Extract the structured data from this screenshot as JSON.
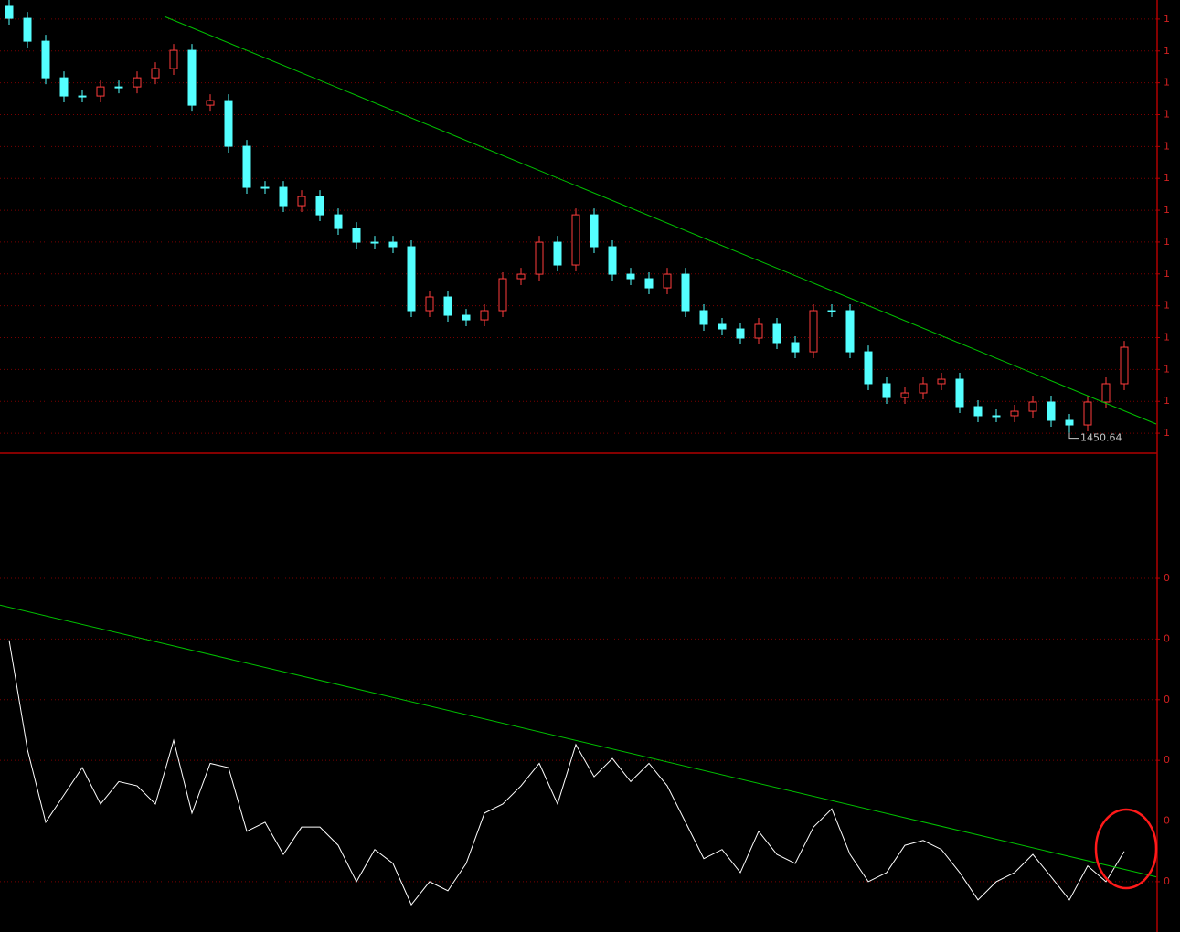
{
  "chart_data": [
    {
      "type": "candlestick",
      "x": [
        0,
        1,
        2,
        3,
        4,
        5,
        6,
        7,
        8,
        9,
        10,
        11,
        12,
        13,
        14,
        15,
        16,
        17,
        18,
        19,
        20,
        21,
        22,
        23,
        24,
        25,
        26,
        27,
        28,
        29,
        30,
        31,
        32,
        33,
        34,
        35,
        36,
        37,
        38,
        39,
        40,
        41,
        42,
        43,
        44,
        45,
        46,
        47,
        48,
        49,
        50,
        51,
        52,
        53,
        54,
        55,
        56,
        57,
        58,
        59,
        60,
        61
      ],
      "open": [
        2120,
        2101.2,
        2065.3,
        2007.9,
        1979.3,
        1979.3,
        1993.6,
        1993.6,
        2007.9,
        2022.3,
        2051.0,
        1964.9,
        1972.1,
        1900.4,
        1835.9,
        1835.9,
        1807.2,
        1821.5,
        1792.8,
        1771.3,
        1749.8,
        1749.8,
        1742.7,
        1642.3,
        1663.8,
        1635.1,
        1627.9,
        1642.3,
        1692.5,
        1699.6,
        1749.8,
        1714.0,
        1792.8,
        1742.7,
        1699.6,
        1692.5,
        1678.1,
        1699.6,
        1642.3,
        1620.8,
        1613.6,
        1599.3,
        1620.8,
        1592.1,
        1577.7,
        1642.3,
        1642.3,
        1577.7,
        1527.6,
        1506.0,
        1513.2,
        1527.6,
        1534.7,
        1491.7,
        1477.4,
        1477.4,
        1484.5,
        1498.9,
        1470.2,
        1463.0,
        1498.9,
        1527.6
      ],
      "high": [
        2130,
        2111.2,
        2075.3,
        2017.9,
        1989.3,
        2003.6,
        2003.6,
        2017.9,
        2032.3,
        2061.0,
        2061.0,
        1982.1,
        1982.1,
        1910.4,
        1845.9,
        1845.9,
        1831.5,
        1831.5,
        1802.8,
        1781.3,
        1759.8,
        1759.8,
        1752.7,
        1673.8,
        1673.8,
        1645.1,
        1652.3,
        1702.5,
        1709.6,
        1759.8,
        1759.8,
        1802.8,
        1802.8,
        1752.7,
        1709.6,
        1702.5,
        1709.6,
        1709.6,
        1652.3,
        1630.8,
        1623.6,
        1630.8,
        1630.8,
        1602.1,
        1652.3,
        1652.3,
        1652.3,
        1587.7,
        1537.6,
        1523.2,
        1537.6,
        1544.7,
        1544.7,
        1501.7,
        1487.4,
        1494.5,
        1508.9,
        1508.9,
        1480.2,
        1508.9,
        1537.6,
        1594.9
      ],
      "low": [
        2091.2,
        2055.3,
        1997.9,
        1969.3,
        1969.3,
        1969.3,
        1983.6,
        1983.6,
        1997.9,
        2012.3,
        1954.9,
        1954.9,
        1890.4,
        1825.9,
        1825.9,
        1797.2,
        1797.2,
        1782.8,
        1761.3,
        1739.8,
        1739.8,
        1732.7,
        1632.3,
        1632.3,
        1625.1,
        1617.9,
        1617.9,
        1632.3,
        1682.5,
        1689.6,
        1704.0,
        1704.0,
        1732.7,
        1689.6,
        1682.5,
        1668.1,
        1668.1,
        1632.3,
        1610.8,
        1603.6,
        1589.3,
        1589.3,
        1582.1,
        1567.7,
        1567.7,
        1632.3,
        1567.7,
        1517.6,
        1496.0,
        1496.0,
        1503.2,
        1517.6,
        1481.7,
        1467.4,
        1467.4,
        1467.4,
        1474.5,
        1460.2,
        1450.64,
        1453.0,
        1488.9,
        1517.6
      ],
      "close": [
        2101.2,
        2065.3,
        2007.9,
        1979.3,
        1979.3,
        1993.6,
        1993.6,
        2007.9,
        2022.3,
        2051.0,
        1964.9,
        1972.1,
        1900.4,
        1835.9,
        1835.9,
        1807.2,
        1821.5,
        1792.8,
        1771.3,
        1749.8,
        1749.8,
        1742.7,
        1642.3,
        1663.8,
        1635.1,
        1627.9,
        1642.3,
        1692.5,
        1699.6,
        1749.8,
        1714.0,
        1792.8,
        1742.7,
        1699.6,
        1692.5,
        1678.1,
        1699.6,
        1642.3,
        1620.8,
        1613.6,
        1599.3,
        1620.8,
        1592.1,
        1577.7,
        1642.3,
        1642.3,
        1577.7,
        1527.6,
        1506.0,
        1513.2,
        1527.6,
        1534.7,
        1491.7,
        1477.4,
        1477.4,
        1484.5,
        1498.9,
        1470.2,
        1463.0,
        1498.9,
        1527.6,
        1584.9
      ],
      "up_color": "#ff3c3c",
      "down_color": "#54ffff",
      "xlim": [
        -0.5,
        62.75
      ],
      "ylim": [
        1420,
        2130
      ],
      "yticks": [
        {
          "value": 1450,
          "label": "1"
        },
        {
          "value": 1500,
          "label": "1"
        },
        {
          "value": 1550,
          "label": "1"
        },
        {
          "value": 1600,
          "label": "1"
        },
        {
          "value": 1650,
          "label": "1"
        },
        {
          "value": 1700,
          "label": "1"
        },
        {
          "value": 1750,
          "label": "1"
        },
        {
          "value": 1800,
          "label": "1"
        },
        {
          "value": 1850,
          "label": "1"
        },
        {
          "value": 1900,
          "label": "1"
        },
        {
          "value": 1950,
          "label": "1"
        },
        {
          "value": 2000,
          "label": "1"
        },
        {
          "value": 2050,
          "label": "1"
        },
        {
          "value": 2100,
          "label": "1"
        }
      ],
      "grid": true,
      "trendline": {
        "x": [
          8.5,
          62.75
        ],
        "y": [
          2104.0,
          1464.5
        ],
        "color": "#00c000"
      }
    },
    {
      "type": "line",
      "x": [
        0,
        1,
        2,
        3,
        4,
        5,
        6,
        7,
        8,
        9,
        10,
        11,
        12,
        13,
        14,
        15,
        16,
        17,
        18,
        19,
        20,
        21,
        22,
        23,
        24,
        25,
        26,
        27,
        28,
        29,
        30,
        31,
        32,
        33,
        34,
        35,
        36,
        37,
        38,
        39,
        40,
        41,
        42,
        43,
        44,
        45,
        46,
        47,
        48,
        49,
        50,
        51,
        52,
        53,
        54,
        55,
        56,
        57,
        58,
        59,
        60,
        61
      ],
      "values": [
        0.398,
        0.218,
        0.098,
        0.143,
        0.188,
        0.128,
        0.165,
        0.158,
        0.128,
        0.233,
        0.113,
        0.195,
        0.188,
        0.083,
        0.098,
        0.045,
        0.09,
        0.09,
        0.06,
        0,
        0.053,
        0.03,
        -0.038,
        0,
        -0.015,
        0.03,
        0.113,
        0.128,
        0.158,
        0.195,
        0.128,
        0.226,
        0.173,
        0.203,
        0.165,
        0.195,
        0.158,
        0.098,
        0.038,
        0.053,
        0.015,
        0.083,
        0.045,
        0.03,
        0.09,
        0.12,
        0.045,
        0,
        0.015,
        0.06,
        0.068,
        0.053,
        0.015,
        -0.03,
        0,
        0.015,
        0.045,
        0.008,
        -0.03,
        0.026,
        0,
        0.05
      ],
      "color": "#ffffff",
      "xlim": [
        -0.5,
        62.75
      ],
      "ylim": [
        -0.083,
        0.705
      ],
      "yticks": [
        {
          "value": 0,
          "label": "0"
        },
        {
          "value": 0.1,
          "label": "0"
        },
        {
          "value": 0.2,
          "label": "0"
        },
        {
          "value": 0.3,
          "label": "0"
        },
        {
          "value": 0.4,
          "label": "0"
        },
        {
          "value": 0.5,
          "label": "0"
        }
      ],
      "grid": true,
      "trendline": {
        "x": [
          -0.5,
          62.75
        ],
        "y": [
          0.456,
          0.008
        ],
        "color": "#00c000"
      }
    }
  ]
}
